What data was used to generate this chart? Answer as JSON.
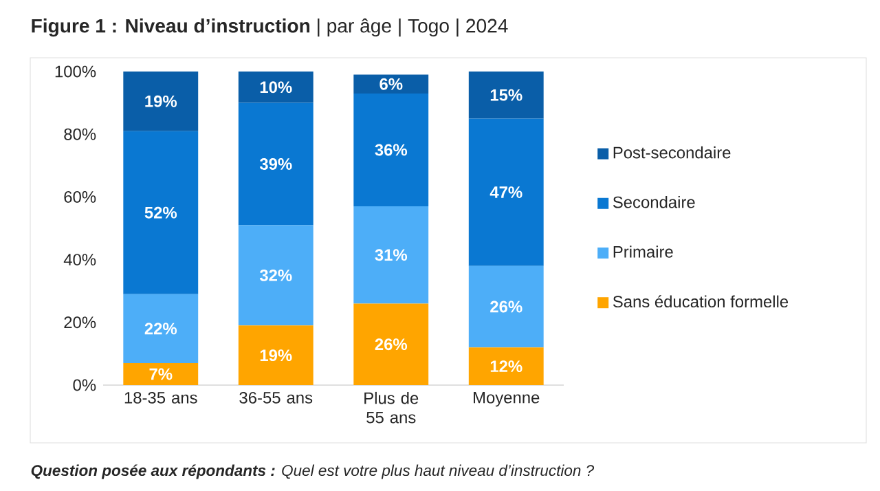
{
  "chart_data": {
    "type": "bar",
    "stacked": true,
    "title": "**Figure 1 : Niveau d’instruction** | par âge | Togo | 2024",
    "categories": [
      "18-35 ans",
      "36-55 ans",
      "Plus de 55 ans",
      "Moyenne"
    ],
    "series": [
      {
        "name": "Sans éducation formelle",
        "color": "#ffa500",
        "values": [
          7,
          19,
          26,
          12
        ],
        "value_labels": [
          "7%",
          "19%",
          "26%",
          "12%"
        ]
      },
      {
        "name": "Primaire",
        "color": "#4daef8",
        "values": [
          22,
          32,
          31,
          26
        ],
        "value_labels": [
          "22%",
          "32%",
          "31%",
          "26%"
        ]
      },
      {
        "name": "Secondaire",
        "color": "#0a78d2",
        "values": [
          52,
          39,
          36,
          47
        ],
        "value_labels": [
          "52%",
          "39%",
          "36%",
          "47%"
        ]
      },
      {
        "name": "Post-secondaire",
        "color": "#0a5ea8",
        "values": [
          19,
          10,
          6,
          15
        ],
        "value_labels": [
          "19%",
          "10%",
          "6%",
          "15%"
        ]
      }
    ],
    "ylim": [
      0,
      100
    ],
    "yticks": [
      {
        "value": 0,
        "label": "0%"
      },
      {
        "value": 20,
        "label": "20%"
      },
      {
        "value": 40,
        "label": "40%"
      },
      {
        "value": 60,
        "label": "60%"
      },
      {
        "value": 80,
        "label": "80%"
      },
      {
        "value": 100,
        "label": "100%"
      }
    ],
    "legend": "right",
    "annotations": [
      "**Question posée aux répondants :** Quel est votre plus haut niveau d’instruction ?"
    ]
  }
}
